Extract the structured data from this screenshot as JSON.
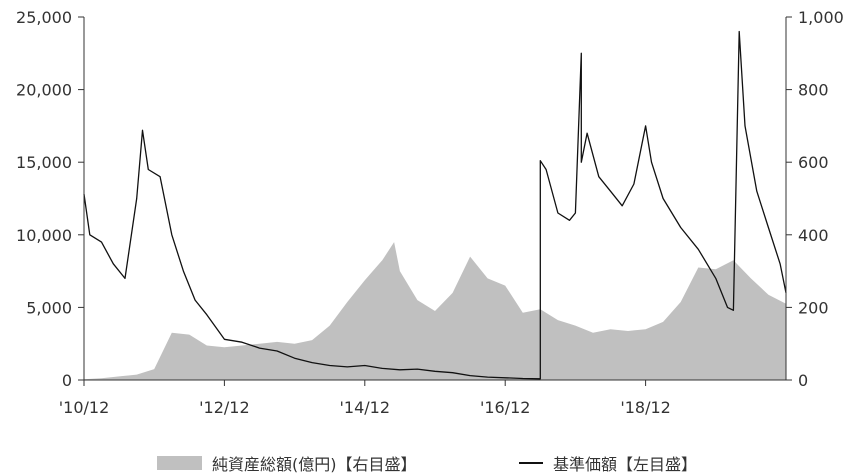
{
  "chart_data": {
    "type": "line+area",
    "title": "",
    "left_axis": {
      "range": [
        0,
        25000
      ],
      "ticks": [
        0,
        5000,
        10000,
        15000,
        20000,
        25000
      ],
      "tick_labels": [
        "0",
        "5,000",
        "10,000",
        "15,000",
        "20,000",
        "25,000"
      ]
    },
    "right_axis": {
      "range": [
        0,
        1000
      ],
      "ticks": [
        0,
        200,
        400,
        600,
        800,
        1000
      ],
      "tick_labels": [
        "0",
        "200",
        "400",
        "600",
        "800",
        "1,000"
      ]
    },
    "x_axis": {
      "range": [
        "2010-12",
        "2020-12"
      ],
      "tick_positions": [
        "2010-12",
        "2012-12",
        "2014-12",
        "2016-12",
        "2018-12"
      ],
      "tick_labels": [
        "'10/12",
        "'12/12",
        "'14/12",
        "'16/12",
        "'18/12"
      ]
    },
    "grid": false,
    "legend_position": "bottom",
    "series": [
      {
        "name": "純資産総額(億円)【右目盛】",
        "kind": "area",
        "axis": "right",
        "color": "#c0c0c0",
        "points": [
          [
            "2010-12",
            2
          ],
          [
            "2011-03",
            5
          ],
          [
            "2011-06",
            10
          ],
          [
            "2011-09",
            15
          ],
          [
            "2011-12",
            30
          ],
          [
            "2012-03",
            130
          ],
          [
            "2012-06",
            125
          ],
          [
            "2012-09",
            95
          ],
          [
            "2012-12",
            90
          ],
          [
            "2013-03",
            95
          ],
          [
            "2013-06",
            100
          ],
          [
            "2013-09",
            105
          ],
          [
            "2013-12",
            100
          ],
          [
            "2014-03",
            110
          ],
          [
            "2014-06",
            150
          ],
          [
            "2014-09",
            215
          ],
          [
            "2014-12",
            275
          ],
          [
            "2015-03",
            330
          ],
          [
            "2015-05",
            380
          ],
          [
            "2015-06",
            300
          ],
          [
            "2015-09",
            220
          ],
          [
            "2015-12",
            190
          ],
          [
            "2016-03",
            240
          ],
          [
            "2016-06",
            340
          ],
          [
            "2016-09",
            280
          ],
          [
            "2016-12",
            260
          ],
          [
            "2017-03",
            185
          ],
          [
            "2017-06",
            195
          ],
          [
            "2017-09",
            165
          ],
          [
            "2017-12",
            150
          ],
          [
            "2018-03",
            130
          ],
          [
            "2018-06",
            140
          ],
          [
            "2018-09",
            135
          ],
          [
            "2018-12",
            140
          ],
          [
            "2019-03",
            160
          ],
          [
            "2019-06",
            215
          ],
          [
            "2019-09",
            310
          ],
          [
            "2019-12",
            305
          ],
          [
            "2020-03",
            330
          ],
          [
            "2020-06",
            280
          ],
          [
            "2020-09",
            235
          ],
          [
            "2020-12",
            210
          ]
        ]
      },
      {
        "name": "基準価額【左目盛】",
        "kind": "line",
        "axis": "left",
        "color": "#111111",
        "points": [
          [
            "2010-12",
            12800
          ],
          [
            "2011-01",
            10000
          ],
          [
            "2011-03",
            9500
          ],
          [
            "2011-05",
            8000
          ],
          [
            "2011-07",
            7000
          ],
          [
            "2011-09",
            12500
          ],
          [
            "2011-10",
            17200
          ],
          [
            "2011-11",
            14500
          ],
          [
            "2012-01",
            14000
          ],
          [
            "2012-03",
            10000
          ],
          [
            "2012-05",
            7500
          ],
          [
            "2012-07",
            5500
          ],
          [
            "2012-09",
            4500
          ],
          [
            "2012-12",
            2800
          ],
          [
            "2013-03",
            2600
          ],
          [
            "2013-06",
            2200
          ],
          [
            "2013-09",
            2000
          ],
          [
            "2013-12",
            1500
          ],
          [
            "2014-03",
            1200
          ],
          [
            "2014-06",
            1000
          ],
          [
            "2014-09",
            900
          ],
          [
            "2014-12",
            1000
          ],
          [
            "2015-03",
            800
          ],
          [
            "2015-06",
            700
          ],
          [
            "2015-09",
            750
          ],
          [
            "2015-12",
            600
          ],
          [
            "2016-03",
            500
          ],
          [
            "2016-06",
            300
          ],
          [
            "2016-09",
            200
          ],
          [
            "2016-12",
            150
          ],
          [
            "2017-03",
            100
          ],
          [
            "2017-06",
            80
          ],
          [
            "2017-06",
            15100
          ],
          [
            "2017-07",
            14500
          ],
          [
            "2017-09",
            11500
          ],
          [
            "2017-11",
            11000
          ],
          [
            "2017-12",
            11500
          ],
          [
            "2018-01",
            22500
          ],
          [
            "2018-01",
            15000
          ],
          [
            "2018-02",
            17000
          ],
          [
            "2018-04",
            14000
          ],
          [
            "2018-06",
            13000
          ],
          [
            "2018-08",
            12000
          ],
          [
            "2018-10",
            13500
          ],
          [
            "2018-12",
            17500
          ],
          [
            "2019-01",
            15000
          ],
          [
            "2019-03",
            12500
          ],
          [
            "2019-06",
            10500
          ],
          [
            "2019-09",
            9000
          ],
          [
            "2019-12",
            7000
          ],
          [
            "2020-02",
            5000
          ],
          [
            "2020-03",
            4800
          ],
          [
            "2020-04",
            24000
          ],
          [
            "2020-05",
            17500
          ],
          [
            "2020-07",
            13000
          ],
          [
            "2020-09",
            10500
          ],
          [
            "2020-11",
            8000
          ],
          [
            "2020-12",
            6000
          ]
        ]
      }
    ]
  }
}
